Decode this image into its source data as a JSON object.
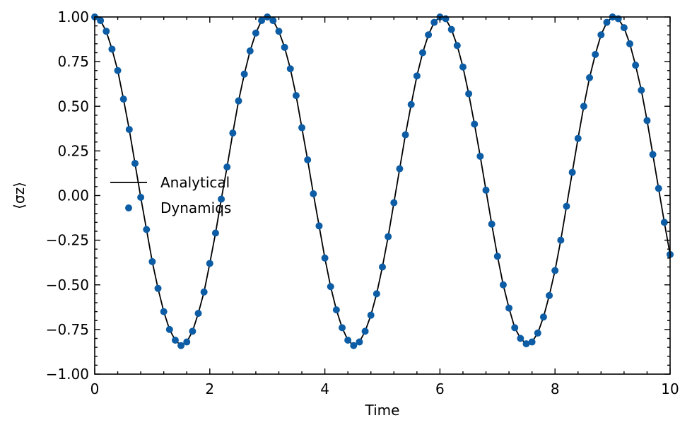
{
  "chart_data": {
    "type": "line",
    "xlabel": "Time",
    "ylabel": "⟨σz⟩",
    "xlim": [
      0,
      10
    ],
    "ylim": [
      -1.0,
      1.0
    ],
    "x_ticks": [
      0,
      2,
      4,
      6,
      8,
      10
    ],
    "x_tick_labels": [
      "0",
      "2",
      "4",
      "6",
      "8",
      "10"
    ],
    "y_ticks": [
      -1.0,
      -0.75,
      -0.5,
      -0.25,
      0.0,
      0.25,
      0.5,
      0.75,
      1.0
    ],
    "y_tick_labels": [
      "−1.00",
      "−0.75",
      "−0.50",
      "−0.25",
      "0.00",
      "0.25",
      "0.50",
      "0.75",
      "1.00"
    ],
    "grid": false,
    "legend_position": "center-left",
    "colors": {
      "analytical": "#000000",
      "dynamiqs": "#0C5DA5"
    },
    "analytical": {
      "name": "Analytical",
      "x": [
        0,
        0.1,
        0.2,
        0.3,
        0.4,
        0.5,
        0.6,
        0.7,
        0.8,
        0.9,
        1.0,
        1.1,
        1.2,
        1.3,
        1.4,
        1.5,
        1.6,
        1.7,
        1.8,
        1.9,
        2.0,
        2.1,
        2.2,
        2.3,
        2.4,
        2.5,
        2.6,
        2.7,
        2.8,
        2.9,
        3.0,
        3.1,
        3.2,
        3.3,
        3.4,
        3.5,
        3.6,
        3.7,
        3.8,
        3.9,
        4.0,
        4.1,
        4.2,
        4.3,
        4.4,
        4.5,
        4.6,
        4.7,
        4.8,
        4.9,
        5.0,
        5.1,
        5.2,
        5.3,
        5.4,
        5.5,
        5.6,
        5.7,
        5.8,
        5.9,
        6.0,
        6.1,
        6.2,
        6.3,
        6.4,
        6.5,
        6.6,
        6.7,
        6.8,
        6.9,
        7.0,
        7.1,
        7.2,
        7.3,
        7.4,
        7.5,
        7.6,
        7.7,
        7.8,
        7.9,
        8.0,
        8.1,
        8.2,
        8.3,
        8.4,
        8.5,
        8.6,
        8.7,
        8.8,
        8.9,
        9.0,
        9.1,
        9.2,
        9.3,
        9.4,
        9.5,
        9.6,
        9.7,
        9.8,
        9.9,
        10.0
      ],
      "y": [
        1.0,
        0.98,
        0.92,
        0.82,
        0.7,
        0.54,
        0.37,
        0.18,
        -0.01,
        -0.19,
        -0.37,
        -0.52,
        -0.65,
        -0.75,
        -0.81,
        -0.84,
        -0.82,
        -0.76,
        -0.66,
        -0.54,
        -0.38,
        -0.21,
        -0.02,
        0.16,
        0.35,
        0.53,
        0.68,
        0.81,
        0.91,
        0.98,
        1.0,
        0.98,
        0.92,
        0.83,
        0.71,
        0.56,
        0.38,
        0.2,
        0.01,
        -0.17,
        -0.35,
        -0.51,
        -0.64,
        -0.74,
        -0.81,
        -0.84,
        -0.82,
        -0.76,
        -0.67,
        -0.55,
        -0.4,
        -0.23,
        -0.04,
        0.15,
        0.34,
        0.51,
        0.67,
        0.8,
        0.9,
        0.97,
        1.0,
        0.99,
        0.93,
        0.84,
        0.72,
        0.57,
        0.4,
        0.22,
        0.03,
        -0.16,
        -0.34,
        -0.5,
        -0.63,
        -0.74,
        -0.8,
        -0.83,
        -0.82,
        -0.77,
        -0.68,
        -0.56,
        -0.42,
        -0.25,
        -0.06,
        0.13,
        0.32,
        0.5,
        0.66,
        0.79,
        0.9,
        0.97,
        1.0,
        0.99,
        0.94,
        0.85,
        0.73,
        0.59,
        0.42,
        0.23,
        0.04,
        -0.15,
        -0.33
      ]
    },
    "dynamiqs": {
      "name": "Dynamiqs",
      "x": [
        0.0,
        0.1,
        0.2,
        0.3,
        0.4,
        0.5,
        0.6,
        0.7,
        0.8,
        0.9,
        1.0,
        1.1,
        1.2,
        1.3,
        1.4,
        1.5,
        1.6,
        1.7,
        1.8,
        1.9,
        2.0,
        2.1,
        2.2,
        2.3,
        2.4,
        2.5,
        2.6,
        2.7,
        2.8,
        2.9,
        3.0,
        3.1,
        3.2,
        3.3,
        3.4,
        3.5,
        3.6,
        3.7,
        3.8,
        3.9,
        4.0,
        4.1,
        4.2,
        4.3,
        4.4,
        4.5,
        4.6,
        4.7,
        4.8,
        4.9,
        5.0,
        5.1,
        5.2,
        5.3,
        5.4,
        5.5,
        5.6,
        5.7,
        5.8,
        5.9,
        6.0,
        6.1,
        6.2,
        6.3,
        6.4,
        6.5,
        6.6,
        6.7,
        6.8,
        6.9,
        7.0,
        7.1,
        7.2,
        7.3,
        7.4,
        7.5,
        7.6,
        7.7,
        7.8,
        7.9,
        8.0,
        8.1,
        8.2,
        8.3,
        8.4,
        8.5,
        8.6,
        8.7,
        8.8,
        8.9,
        9.0,
        9.1,
        9.2,
        9.3,
        9.4,
        9.5,
        9.6,
        9.7,
        9.8,
        9.9,
        10.0
      ],
      "y": [
        1.0,
        0.98,
        0.92,
        0.82,
        0.7,
        0.54,
        0.37,
        0.18,
        -0.01,
        -0.19,
        -0.37,
        -0.52,
        -0.65,
        -0.75,
        -0.81,
        -0.84,
        -0.82,
        -0.76,
        -0.66,
        -0.54,
        -0.38,
        -0.21,
        -0.02,
        0.16,
        0.35,
        0.53,
        0.68,
        0.81,
        0.91,
        0.98,
        1.0,
        0.98,
        0.92,
        0.83,
        0.71,
        0.56,
        0.38,
        0.2,
        0.01,
        -0.17,
        -0.35,
        -0.51,
        -0.64,
        -0.74,
        -0.81,
        -0.84,
        -0.82,
        -0.76,
        -0.67,
        -0.55,
        -0.4,
        -0.23,
        -0.04,
        0.15,
        0.34,
        0.51,
        0.67,
        0.8,
        0.9,
        0.97,
        1.0,
        0.99,
        0.93,
        0.84,
        0.72,
        0.57,
        0.4,
        0.22,
        0.03,
        -0.16,
        -0.34,
        -0.5,
        -0.63,
        -0.74,
        -0.8,
        -0.83,
        -0.82,
        -0.77,
        -0.68,
        -0.56,
        -0.42,
        -0.25,
        -0.06,
        0.13,
        0.32,
        0.5,
        0.66,
        0.79,
        0.9,
        0.97,
        1.0,
        0.99,
        0.94,
        0.85,
        0.73,
        0.59,
        0.42,
        0.23,
        0.04,
        -0.15,
        -0.33
      ]
    }
  }
}
